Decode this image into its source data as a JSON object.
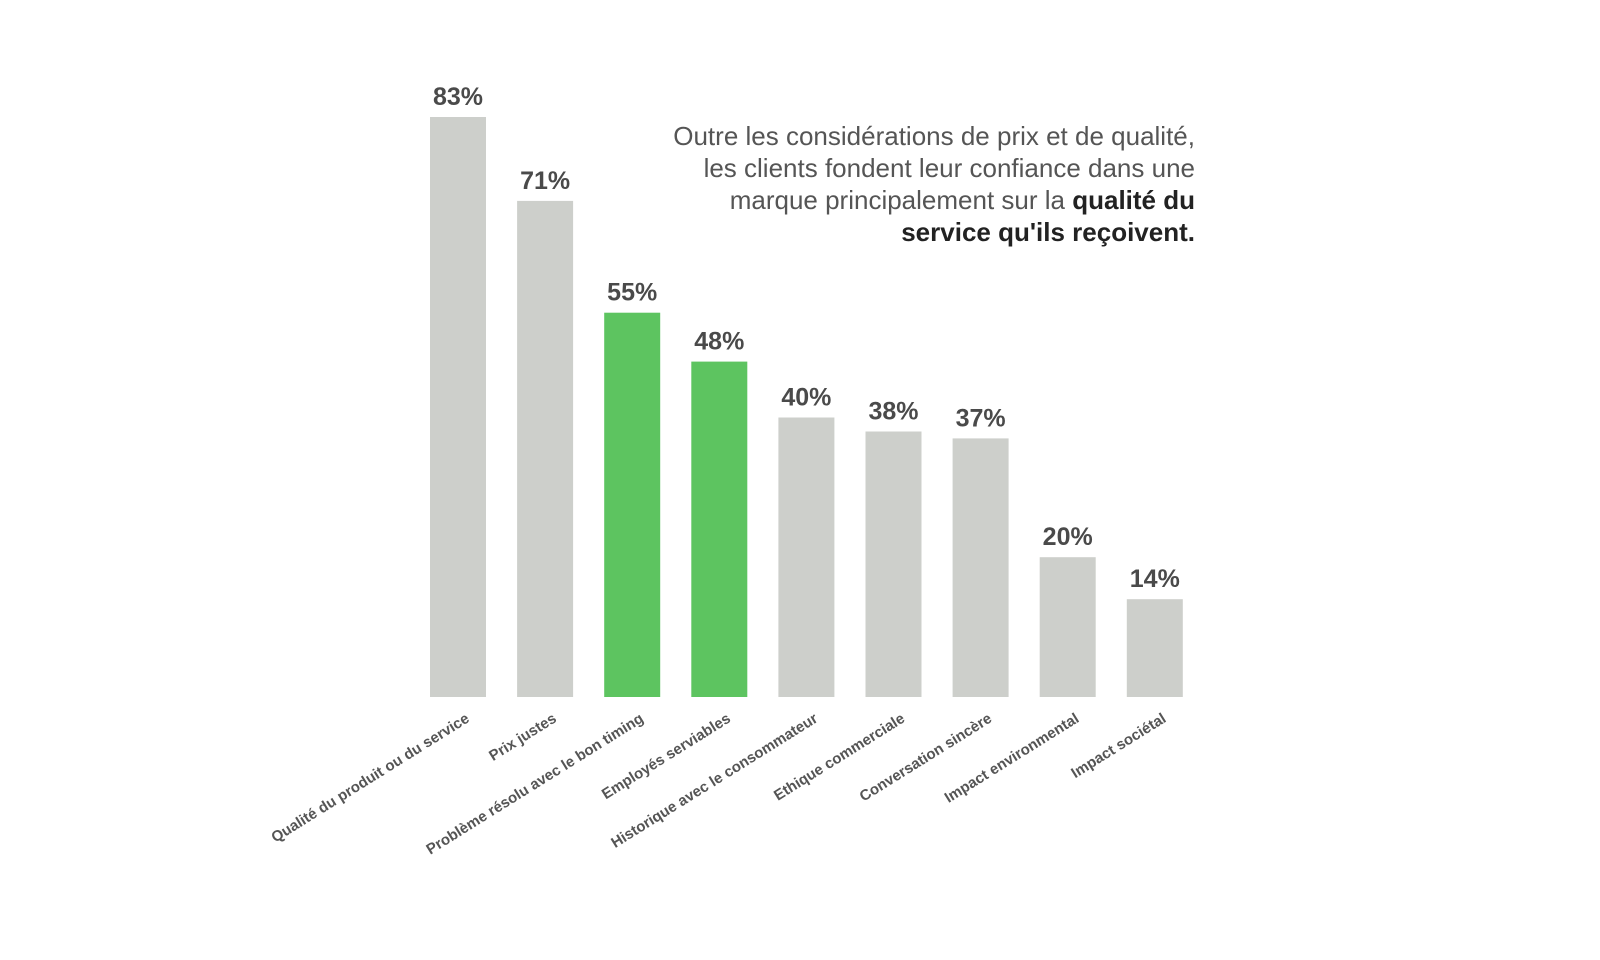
{
  "chart_data": {
    "type": "bar",
    "categories": [
      "Qualité du produit ou du service",
      "Prix justes",
      "Problème résolu avec le bon timing",
      "Employés serviables",
      "Historique avec le consommateur",
      "Ethique commerciale",
      "Conversation sincère",
      "Impact environmental",
      "Impact sociétal"
    ],
    "values": [
      83,
      71,
      55,
      48,
      40,
      38,
      37,
      20,
      14
    ],
    "value_labels": [
      "83%",
      "71%",
      "55%",
      "48%",
      "40%",
      "38%",
      "37%",
      "20%",
      "14%"
    ],
    "highlighted": [
      false,
      false,
      true,
      true,
      false,
      false,
      false,
      false,
      false
    ],
    "colors": {
      "default": "#cdcfcb",
      "highlight": "#5dc460",
      "value_text": "#4a4a4a",
      "label_text": "#555555"
    },
    "title": "",
    "xlabel": "",
    "ylabel": "",
    "ylim": [
      0,
      83
    ],
    "grid": false,
    "legend": "none"
  },
  "annotation": {
    "lead": "Outre les considérations de prix et de qualité, les clients fondent leur confiance dans une marque principalement sur la",
    "emphasis": "qualité du service qu'ils reçoivent."
  }
}
